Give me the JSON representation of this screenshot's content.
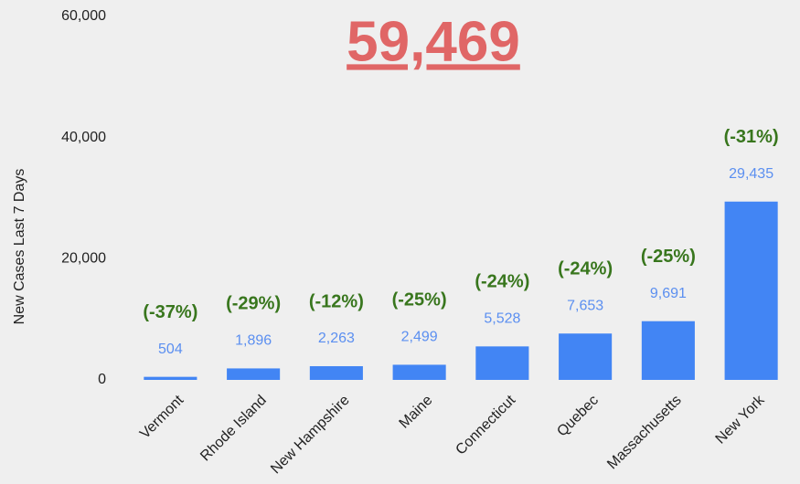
{
  "chart_data": {
    "type": "bar",
    "title": "59,469",
    "ylabel": "New Cases Last 7 Days",
    "categories": [
      "Vermont",
      "Rhode Island",
      "New Hampshire",
      "Maine",
      "Connecticut",
      "Quebec",
      "Massachusetts",
      "New York"
    ],
    "values": [
      504,
      1896,
      2263,
      2499,
      5528,
      7653,
      9691,
      29435
    ],
    "value_labels": [
      "504",
      "1,896",
      "2,263",
      "2,499",
      "5,528",
      "7,653",
      "9,691",
      "29,435"
    ],
    "annotations": [
      "(-37%)",
      "(-29%)",
      "(-12%)",
      "(-25%)",
      "(-24%)",
      "(-24%)",
      "(-25%)",
      "(-31%)"
    ],
    "color": "#4285f4",
    "ylim": [
      0,
      60000
    ],
    "yticks": [
      0,
      {
        "value": 20000,
        "label": "20,000"
      },
      {
        "value": 40000,
        "label": "40,000"
      },
      {
        "value": 60000,
        "label": "60,000"
      }
    ],
    "grid": false
  }
}
